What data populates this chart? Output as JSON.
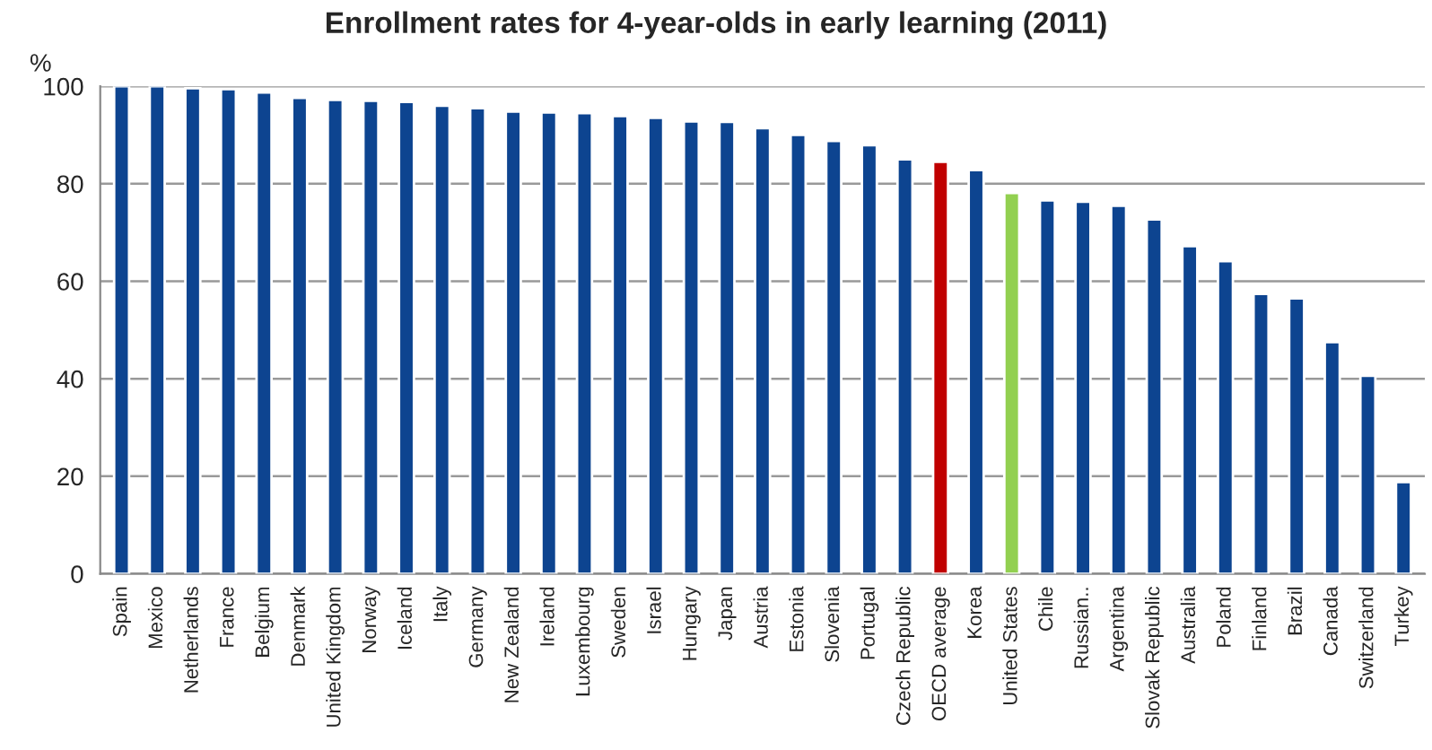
{
  "chart_data": {
    "type": "bar",
    "title": "Enrollment rates for 4-year-olds in early learning (2011)",
    "ylabel": "%",
    "categories": [
      "Spain",
      "Mexico",
      "Netherlands",
      "France",
      "Belgium",
      "Denmark",
      "United Kingdom",
      "Norway",
      "Iceland",
      "Italy",
      "Germany",
      "New Zealand",
      "Ireland",
      "Luxembourg",
      "Sweden",
      "Israel",
      "Hungary",
      "Japan",
      "Austria",
      "Estonia",
      "Slovenia",
      "Portugal",
      "Czech Republic",
      "OECD average",
      "Korea",
      "United States",
      "Chile",
      "Russian..",
      "Argentina",
      "Slovak Republic",
      "Australia",
      "Poland",
      "Finland",
      "Brazil",
      "Canada",
      "Switzerland",
      "Turkey"
    ],
    "values": [
      100,
      100,
      99.6,
      99.4,
      98.7,
      97.6,
      97.2,
      97.0,
      96.8,
      96.0,
      95.5,
      94.8,
      94.6,
      94.5,
      93.9,
      93.5,
      92.8,
      92.7,
      91.4,
      90.0,
      88.8,
      87.9,
      85.0,
      84.5,
      82.8,
      78.1,
      76.6,
      76.3,
      75.5,
      72.7,
      67.2,
      64.1,
      57.4,
      56.5,
      47.5,
      40.6,
      18.8
    ],
    "colors": [
      "#0d4490",
      "#0d4490",
      "#0d4490",
      "#0d4490",
      "#0d4490",
      "#0d4490",
      "#0d4490",
      "#0d4490",
      "#0d4490",
      "#0d4490",
      "#0d4490",
      "#0d4490",
      "#0d4490",
      "#0d4490",
      "#0d4490",
      "#0d4490",
      "#0d4490",
      "#0d4490",
      "#0d4490",
      "#0d4490",
      "#0d4490",
      "#0d4490",
      "#0d4490",
      "#c00000",
      "#0d4490",
      "#92d050",
      "#0d4490",
      "#0d4490",
      "#0d4490",
      "#0d4490",
      "#0d4490",
      "#0d4490",
      "#0d4490",
      "#0d4490",
      "#0d4490",
      "#0d4490",
      "#0d4490"
    ],
    "ylim": [
      0,
      100
    ],
    "yticks": [
      0,
      20,
      40,
      60,
      80,
      100
    ],
    "grid": "y",
    "legend": false
  }
}
